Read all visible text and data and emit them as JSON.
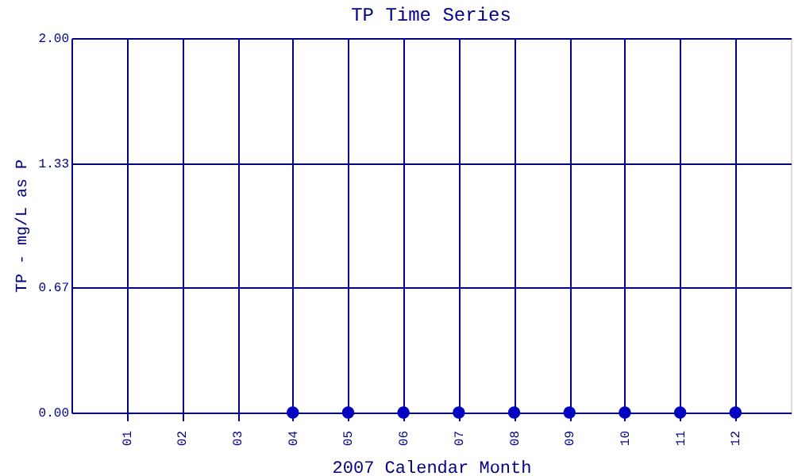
{
  "chart_data": {
    "type": "scatter",
    "title": "TP Time Series",
    "xlabel": "2007 Calendar Month",
    "ylabel": "TP - mg/L as P",
    "categories": [
      "01",
      "02",
      "03",
      "04",
      "05",
      "06",
      "07",
      "08",
      "09",
      "10",
      "11",
      "12"
    ],
    "series": [
      {
        "color": "#0000c0",
        "values": [
          null,
          null,
          null,
          0,
          0,
          0,
          0,
          0,
          0,
          0,
          0,
          0
        ]
      }
    ],
    "ylim": [
      0,
      2
    ],
    "yticks": [
      {
        "value": 0,
        "label": "0.00"
      },
      0.67,
      1.33,
      {
        "value": 2,
        "label": "2.00"
      }
    ],
    "grid": true,
    "marker": "circle"
  }
}
